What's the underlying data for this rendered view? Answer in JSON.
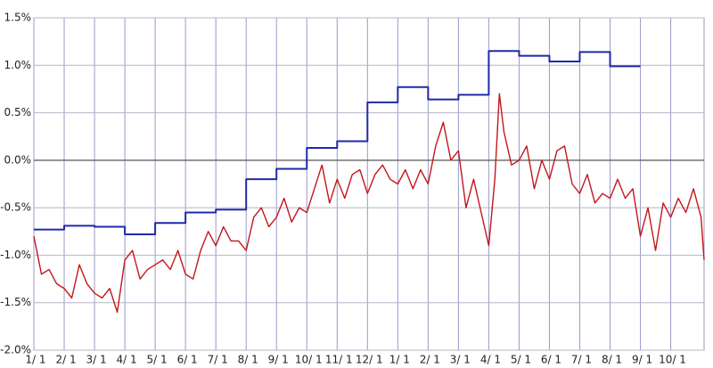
{
  "chart_data": {
    "type": "line",
    "xlim": [
      0,
      22.1
    ],
    "xticks": [
      {
        "value": 0,
        "label": "1/ 1"
      },
      {
        "value": 1,
        "label": "2/ 1"
      },
      {
        "value": 2,
        "label": "3/ 1"
      },
      {
        "value": 3,
        "label": "4/ 1"
      },
      {
        "value": 4,
        "label": "5/ 1"
      },
      {
        "value": 5,
        "label": "6/ 1"
      },
      {
        "value": 6,
        "label": "7/ 1"
      },
      {
        "value": 7,
        "label": "8/ 1"
      },
      {
        "value": 8,
        "label": "9/ 1"
      },
      {
        "value": 9,
        "label": "10/ 1"
      },
      {
        "value": 10,
        "label": "11/ 1"
      },
      {
        "value": 11,
        "label": "12/ 1"
      },
      {
        "value": 12,
        "label": "1/ 1"
      },
      {
        "value": 13,
        "label": "2/ 1"
      },
      {
        "value": 14,
        "label": "3/ 1"
      },
      {
        "value": 15,
        "label": "4/ 1"
      },
      {
        "value": 16,
        "label": "5/ 1"
      },
      {
        "value": 17,
        "label": "6/ 1"
      },
      {
        "value": 18,
        "label": "7/ 1"
      },
      {
        "value": 19,
        "label": "8/ 1"
      },
      {
        "value": 20,
        "label": "9/ 1"
      },
      {
        "value": 21,
        "label": "10/ 1"
      }
    ],
    "ylim": [
      -2.0,
      1.5
    ],
    "yticks": [
      {
        "value": -2.0,
        "label": "-2.0%"
      },
      {
        "value": -1.5,
        "label": "-1.5%"
      },
      {
        "value": -1.0,
        "label": "-1.0%"
      },
      {
        "value": -0.5,
        "label": "-0.5%"
      },
      {
        "value": 0,
        "label": "0.0%"
      },
      {
        "value": 0.5,
        "label": "0.5%"
      },
      {
        "value": 1.0,
        "label": "1.0%"
      },
      {
        "value": 1.5,
        "label": "1.5%"
      }
    ],
    "grid": true,
    "series": [
      {
        "color": "#1f2aa8",
        "step": "post",
        "x": [
          0,
          1,
          2,
          3,
          4,
          5,
          6,
          7,
          8,
          9,
          10,
          11,
          12,
          13,
          14,
          15,
          16,
          17,
          18,
          19,
          20
        ],
        "values": [
          -0.73,
          -0.69,
          -0.7,
          -0.78,
          -0.66,
          -0.55,
          -0.52,
          -0.2,
          -0.09,
          0.13,
          0.2,
          0.61,
          0.77,
          0.64,
          0.69,
          1.15,
          1.1,
          1.04,
          1.14,
          0.99,
          0.99
        ]
      },
      {
        "color": "#c4161c",
        "x": [
          0,
          0.25,
          0.5,
          0.75,
          1,
          1.25,
          1.5,
          1.75,
          2,
          2.25,
          2.5,
          2.75,
          3,
          3.25,
          3.5,
          3.75,
          4,
          4.25,
          4.5,
          4.75,
          5,
          5.25,
          5.5,
          5.75,
          6,
          6.25,
          6.5,
          6.75,
          7,
          7.25,
          7.5,
          7.75,
          8,
          8.25,
          8.5,
          8.75,
          9,
          9.25,
          9.5,
          9.75,
          10,
          10.25,
          10.5,
          10.75,
          11,
          11.25,
          11.5,
          11.75,
          12,
          12.25,
          12.5,
          12.75,
          13,
          13.25,
          13.5,
          13.75,
          14,
          14.25,
          14.5,
          14.75,
          15,
          15.2,
          15.35,
          15.5,
          15.75,
          16,
          16.25,
          16.5,
          16.75,
          17,
          17.25,
          17.5,
          17.75,
          18,
          18.25,
          18.5,
          18.75,
          19,
          19.25,
          19.5,
          19.75,
          20,
          20.25,
          20.5,
          20.75,
          21,
          21.25,
          21.5,
          21.75,
          22,
          22.1
        ],
        "values": [
          -0.8,
          -1.2,
          -1.15,
          -1.3,
          -1.35,
          -1.45,
          -1.1,
          -1.3,
          -1.4,
          -1.45,
          -1.35,
          -1.6,
          -1.05,
          -0.95,
          -1.25,
          -1.15,
          -1.1,
          -1.05,
          -1.15,
          -0.95,
          -1.2,
          -1.25,
          -0.95,
          -0.75,
          -0.9,
          -0.7,
          -0.85,
          -0.85,
          -0.95,
          -0.6,
          -0.5,
          -0.7,
          -0.6,
          -0.4,
          -0.65,
          -0.5,
          -0.55,
          -0.3,
          -0.05,
          -0.45,
          -0.2,
          -0.4,
          -0.15,
          -0.1,
          -0.35,
          -0.15,
          -0.05,
          -0.2,
          -0.25,
          -0.1,
          -0.3,
          -0.1,
          -0.25,
          0.15,
          0.4,
          0.0,
          0.1,
          -0.5,
          -0.2,
          -0.55,
          -0.9,
          -0.2,
          0.7,
          0.3,
          -0.05,
          0.0,
          0.15,
          -0.3,
          0.0,
          -0.2,
          0.1,
          0.15,
          -0.25,
          -0.35,
          -0.15,
          -0.45,
          -0.35,
          -0.4,
          -0.2,
          -0.4,
          -0.3,
          -0.8,
          -0.5,
          -0.95,
          -0.45,
          -0.6,
          -0.4,
          -0.55,
          -0.3,
          -0.6,
          -1.05
        ]
      }
    ]
  }
}
